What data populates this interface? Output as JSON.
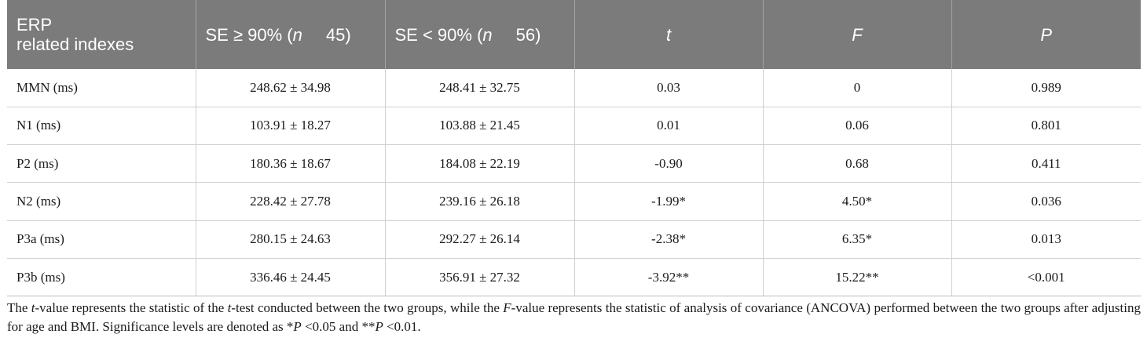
{
  "table": {
    "header": {
      "col0_line1": "ERP",
      "col0_line2": "related indexes",
      "col1_prefix": "SE ≥ 90% (",
      "col1_n": "n",
      "col1_value": "45)",
      "col2_prefix": "SE < 90% (",
      "col2_n": "n",
      "col2_value": "56)",
      "col3": "t",
      "col4": "F",
      "col5": "P"
    },
    "rows": [
      {
        "label": "MMN (ms)",
        "se_high": "248.62 ± 34.98",
        "se_low": "248.41 ± 32.75",
        "t": "0.03",
        "f": "0",
        "p": "0.989"
      },
      {
        "label": "N1 (ms)",
        "se_high": "103.91 ± 18.27",
        "se_low": "103.88 ± 21.45",
        "t": "0.01",
        "f": "0.06",
        "p": "0.801"
      },
      {
        "label": "P2 (ms)",
        "se_high": "180.36 ± 18.67",
        "se_low": "184.08 ± 22.19",
        "t": "-0.90",
        "f": "0.68",
        "p": "0.411"
      },
      {
        "label": "N2 (ms)",
        "se_high": "228.42 ± 27.78",
        "se_low": "239.16 ± 26.18",
        "t": "-1.99*",
        "f": "4.50*",
        "p": "0.036"
      },
      {
        "label": "P3a (ms)",
        "se_high": "280.15 ± 24.63",
        "se_low": "292.27 ± 26.14",
        "t": "-2.38*",
        "f": "6.35*",
        "p": "0.013"
      },
      {
        "label": "P3b (ms)",
        "se_high": "336.46 ± 24.45",
        "se_low": "356.91 ± 27.32",
        "t": "-3.92**",
        "f": "15.22**",
        "p": "<0.001"
      }
    ]
  },
  "footnote": {
    "s1": "The ",
    "t_italic": "t",
    "s2": "-value represents the statistic of the ",
    "t_italic2": "t",
    "s3": "-test conducted between the two groups, while the ",
    "f_italic": "F",
    "s4": "-value represents the statistic of analysis of covariance (ANCOVA) performed between the two groups after adjusting for age and BMI. Significance levels are denoted as *",
    "p_italic": "P",
    "s5": " <0.05 and **",
    "p_italic2": "P",
    "s6": " <0.01."
  }
}
